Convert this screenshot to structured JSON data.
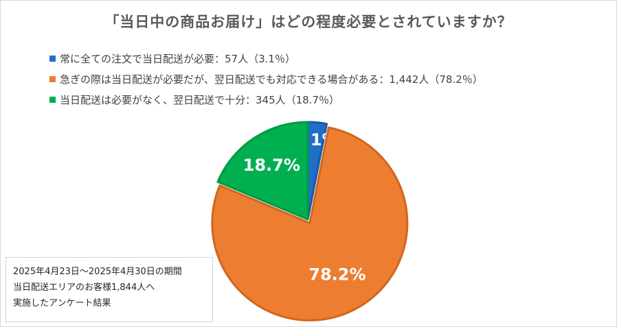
{
  "chart_data": {
    "type": "pie",
    "title": "「当日中の商品お届け」はどの程度必要とされていますか？",
    "categories": [
      "常に全ての注文で当日配送が必要",
      "急ぎの際は当日配送が必要だが、翌日配送でも対応できる場合がある",
      "当日配送は必要がなく、翌日配送で十分"
    ],
    "counts": [
      57,
      1442,
      345
    ],
    "values": [
      3.1,
      78.2,
      18.7
    ],
    "data_labels": [
      "3.1%",
      "78.2%",
      "18.7%"
    ],
    "legend": [
      "常に全ての注文で当日配送が必要：57人（3.1％）",
      "急ぎの際は当日配送が必要だが、翌日配送でも対応できる場合がある：1,442人（78.2％）",
      "当日配送は必要がなく、翌日配送で十分：345人（18.7％）"
    ],
    "colors": [
      "#1f6fc6",
      "#ed7d31",
      "#00b050"
    ],
    "border_colors": [
      "#1a5aa8",
      "#d0661f",
      "#009a42"
    ],
    "exploded_slice": 1,
    "legend_position": "top-left"
  },
  "note": {
    "lines": [
      "2025年4月23日～2025年4月30日の期間",
      "当日配送エリアのお客様1,844人へ",
      "実施したアンケート結果"
    ]
  }
}
